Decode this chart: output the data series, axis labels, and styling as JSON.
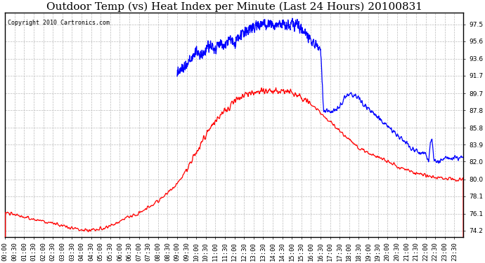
{
  "title": "Outdoor Temp (vs) Heat Index per Minute (Last 24 Hours) 20100831",
  "copyright_text": "Copyright 2010 Cartronics.com",
  "background_color": "#ffffff",
  "plot_bg_color": "#ffffff",
  "grid_color": "#bbbbbb",
  "line_color_blue": "#0000ff",
  "line_color_red": "#ff0000",
  "yticks": [
    74.2,
    76.1,
    78.1,
    80.0,
    82.0,
    83.9,
    85.8,
    87.8,
    89.7,
    91.7,
    93.6,
    95.6,
    97.5
  ],
  "ylim": [
    73.5,
    98.8
  ],
  "title_fontsize": 11,
  "tick_fontsize": 6.5,
  "copyright_fontsize": 6
}
